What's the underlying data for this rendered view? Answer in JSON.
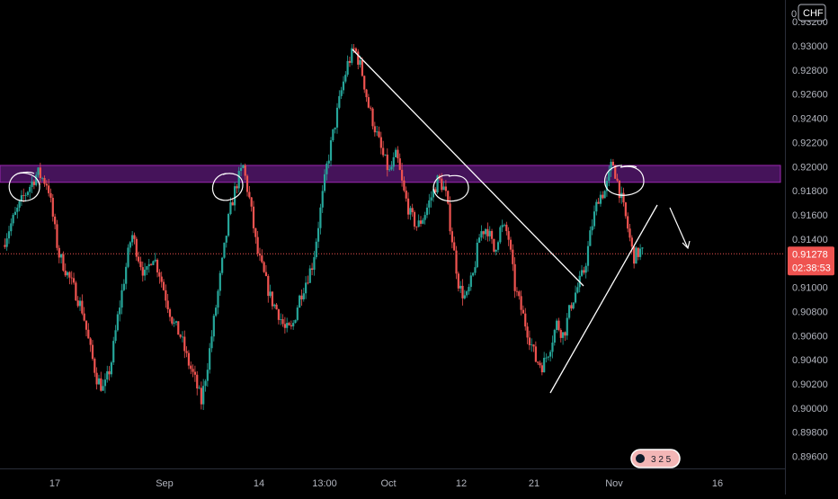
{
  "currency_badge": "CHF",
  "top_price_partial": "0",
  "price_axis": {
    "ticks": [
      "0.93200",
      "0.93000",
      "0.92800",
      "0.92600",
      "0.92400",
      "0.92200",
      "0.92000",
      "0.91800",
      "0.91600",
      "0.91400",
      "0.91000",
      "0.90800",
      "0.90600",
      "0.90400",
      "0.90200",
      "0.90000",
      "0.89800",
      "0.89600"
    ]
  },
  "time_axis": {
    "ticks": [
      "17",
      "Sep",
      "14",
      "13:00",
      "Oct",
      "12",
      "21",
      "Nov",
      "16"
    ]
  },
  "last_price": {
    "value": "0.91278",
    "countdown": "02:38:53"
  },
  "colors": {
    "up": "#26a69a",
    "down": "#ef5350",
    "zone": "#7b1fa2",
    "trendline": "#ffffff"
  },
  "chart_data": {
    "type": "candlestick",
    "ylim": [
      0.895,
      0.9338
    ],
    "x_range_days": [
      "Aug 7",
      "Nov 23"
    ],
    "resistance_zone": [
      0.9187,
      0.9201
    ],
    "last_price": 0.91278,
    "price_path": [
      [
        0,
        0.9135
      ],
      [
        2,
        0.915
      ],
      [
        6,
        0.9175
      ],
      [
        10,
        0.9195
      ],
      [
        13,
        0.9185
      ],
      [
        16,
        0.9128
      ],
      [
        18,
        0.9115
      ],
      [
        21,
        0.9095
      ],
      [
        23,
        0.908
      ],
      [
        25,
        0.905
      ],
      [
        27,
        0.9025
      ],
      [
        29,
        0.9015
      ],
      [
        31,
        0.9035
      ],
      [
        33,
        0.9075
      ],
      [
        35,
        0.911
      ],
      [
        37,
        0.9145
      ],
      [
        39,
        0.9125
      ],
      [
        41,
        0.9108
      ],
      [
        43,
        0.9128
      ],
      [
        45,
        0.9112
      ],
      [
        47,
        0.909
      ],
      [
        49,
        0.907
      ],
      [
        51,
        0.906
      ],
      [
        53,
        0.904
      ],
      [
        55,
        0.9025
      ],
      [
        57,
        0.9005
      ],
      [
        59,
        0.904
      ],
      [
        61,
        0.908
      ],
      [
        63,
        0.912
      ],
      [
        65,
        0.916
      ],
      [
        67,
        0.9185
      ],
      [
        69,
        0.92
      ],
      [
        71,
        0.917
      ],
      [
        73,
        0.913
      ],
      [
        75,
        0.911
      ],
      [
        77,
        0.909
      ],
      [
        79,
        0.908
      ],
      [
        81,
        0.9065
      ],
      [
        83,
        0.9065
      ],
      [
        85,
        0.909
      ],
      [
        87,
        0.9105
      ],
      [
        89,
        0.912
      ],
      [
        91,
        0.916
      ],
      [
        93,
        0.92
      ],
      [
        95,
        0.923
      ],
      [
        97,
        0.926
      ],
      [
        99,
        0.9285
      ],
      [
        101,
        0.9298
      ],
      [
        103,
        0.928
      ],
      [
        105,
        0.925
      ],
      [
        107,
        0.923
      ],
      [
        109,
        0.921
      ],
      [
        111,
        0.9195
      ],
      [
        113,
        0.921
      ],
      [
        115,
        0.918
      ],
      [
        117,
        0.916
      ],
      [
        119,
        0.915
      ],
      [
        121,
        0.916
      ],
      [
        123,
        0.9175
      ],
      [
        125,
        0.919
      ],
      [
        127,
        0.918
      ],
      [
        129,
        0.914
      ],
      [
        131,
        0.91
      ],
      [
        133,
        0.909
      ],
      [
        135,
        0.911
      ],
      [
        137,
        0.9145
      ],
      [
        139,
        0.915
      ],
      [
        141,
        0.913
      ],
      [
        143,
        0.915
      ],
      [
        145,
        0.9145
      ],
      [
        147,
        0.91
      ],
      [
        149,
        0.908
      ],
      [
        151,
        0.906
      ],
      [
        153,
        0.904
      ],
      [
        155,
        0.9035
      ],
      [
        157,
        0.905
      ],
      [
        159,
        0.907
      ],
      [
        161,
        0.906
      ],
      [
        163,
        0.9085
      ],
      [
        165,
        0.91
      ],
      [
        167,
        0.9115
      ],
      [
        169,
        0.915
      ],
      [
        171,
        0.9175
      ],
      [
        173,
        0.918
      ],
      [
        175,
        0.9205
      ],
      [
        177,
        0.918
      ],
      [
        179,
        0.9155
      ],
      [
        181,
        0.9125
      ],
      [
        183,
        0.913
      ],
      [
        184,
        0.9128
      ]
    ]
  }
}
